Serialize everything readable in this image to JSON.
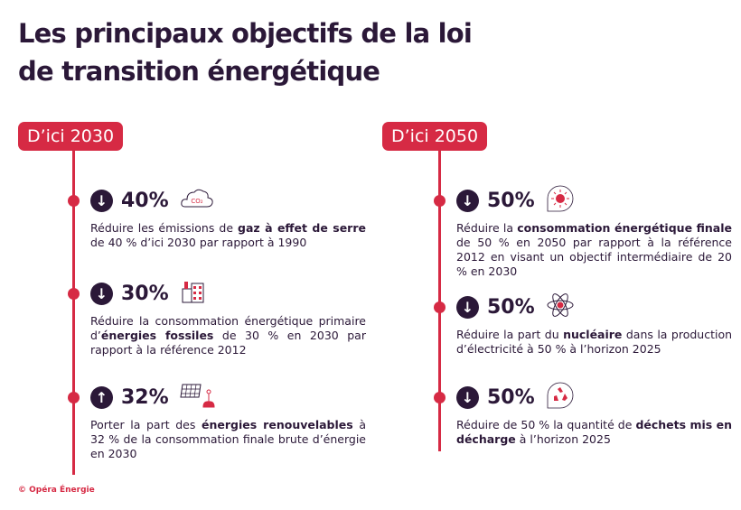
{
  "title_line1": "Les principaux objectifs de la loi",
  "title_line2": "de transition énergétique",
  "colors": {
    "accent": "#d62a44",
    "text": "#2b1838"
  },
  "columns": [
    {
      "label": "D’ici 2030",
      "items": [
        {
          "direction": "down",
          "icon": "co2-cloud-icon",
          "value": "40%",
          "text": [
            {
              "t": "Réduire les émissions de "
            },
            {
              "t": "gaz à effet de serre",
              "b": true
            },
            {
              "t": " de 40 % d’ici 2030 par rapport à 1990"
            }
          ]
        },
        {
          "direction": "down",
          "icon": "factory-icon",
          "value": "30%",
          "text": [
            {
              "t": "Réduire la consommation énergétique primaire d’"
            },
            {
              "t": "énergies fossiles",
              "b": true
            },
            {
              "t": " de 30 % en 2030 par rapport à la référence 2012"
            }
          ]
        },
        {
          "direction": "up",
          "icon": "solar-wind-icon",
          "value": "32%",
          "text": [
            {
              "t": "Porter la part des "
            },
            {
              "t": "énergies renouvelables",
              "b": true
            },
            {
              "t": " à 32 % de la consommation finale brute d’énergie en 2030"
            }
          ]
        }
      ]
    },
    {
      "label": "D’ici 2050",
      "items": [
        {
          "direction": "down",
          "icon": "energy-bubble-icon",
          "value": "50%",
          "text": [
            {
              "t": "Réduire la "
            },
            {
              "t": "consommation énergétique finale",
              "b": true
            },
            {
              "t": " de 50 % en 2050 par rapport à la référence 2012 en visant un objectif intermédiaire de 20 % en 2030"
            }
          ]
        },
        {
          "direction": "down",
          "icon": "atom-icon",
          "value": "50%",
          "text": [
            {
              "t": "Réduire la part du "
            },
            {
              "t": "nucléaire",
              "b": true
            },
            {
              "t": " dans la production d’électricité à 50 % à l’horizon 2025"
            }
          ]
        },
        {
          "direction": "down",
          "icon": "recycle-icon",
          "value": "50%",
          "text": [
            {
              "t": "Réduire de 50 % la quantité de "
            },
            {
              "t": "déchets mis en décharge",
              "b": true
            },
            {
              "t": " à l’horizon 2025"
            }
          ]
        }
      ]
    }
  ],
  "credit": "© Opéra Énergie"
}
